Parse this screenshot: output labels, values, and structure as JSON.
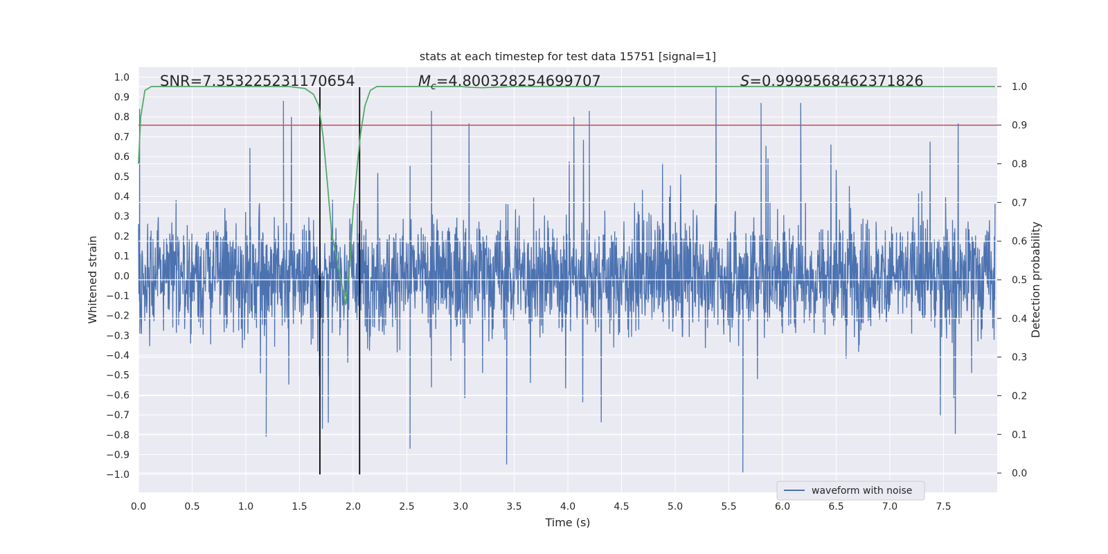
{
  "chart_data": {
    "type": "line",
    "title": "stats at each timestep for test data 15751 [signal=1]",
    "xlabel": "Time (s)",
    "ylabel_left": "Whitened strain",
    "ylabel_right": "Detection probability",
    "xlim": [
      0.0,
      8.0
    ],
    "ylim_left": [
      -1.09,
      1.05
    ],
    "ylim_right": [
      -0.05,
      1.05
    ],
    "x_ticks": [
      "0.0",
      "0.5",
      "1.0",
      "1.5",
      "2.0",
      "2.5",
      "3.0",
      "3.5",
      "4.0",
      "4.5",
      "5.0",
      "5.5",
      "6.0",
      "6.5",
      "7.0",
      "7.5"
    ],
    "x_tick_values": [
      0.0,
      0.5,
      1.0,
      1.5,
      2.0,
      2.5,
      3.0,
      3.5,
      4.0,
      4.5,
      5.0,
      5.5,
      6.0,
      6.5,
      7.0,
      7.5
    ],
    "y_left_ticks": [
      "1.0",
      "0.9",
      "0.8",
      "0.7",
      "0.6",
      "0.5",
      "0.4",
      "0.3",
      "0.2",
      "0.1",
      "0.0",
      "−0.1",
      "−0.2",
      "−0.3",
      "−0.4",
      "−0.5",
      "−0.6",
      "−0.7",
      "−0.8",
      "−0.9",
      "−1.0"
    ],
    "y_left_tick_values": [
      1.0,
      0.9,
      0.8,
      0.7,
      0.6,
      0.5,
      0.4,
      0.3,
      0.2,
      0.1,
      0.0,
      -0.1,
      -0.2,
      -0.3,
      -0.4,
      -0.5,
      -0.6,
      -0.7,
      -0.8,
      -0.9,
      -1.0
    ],
    "y_right_ticks": [
      "1.0",
      "0.9",
      "0.8",
      "0.7",
      "0.6",
      "0.5",
      "0.4",
      "0.3",
      "0.2",
      "0.1",
      "0.0"
    ],
    "y_right_tick_values": [
      1.0,
      0.9,
      0.8,
      0.7,
      0.6,
      0.5,
      0.4,
      0.3,
      0.2,
      0.1,
      0.0
    ],
    "annotations": {
      "snr": "SNR=7.353225231170654",
      "mc_symbol": "M",
      "mc_sub": "c",
      "mc_value": "=4.800328254699707",
      "s_symbol": "S",
      "s_value": "=0.9999568462371826"
    },
    "threshold_line": {
      "axis": "right",
      "value": 0.9,
      "color": "#c44e52"
    },
    "window_lines": {
      "x": [
        1.69,
        2.06
      ],
      "y_range": [
        -1.0,
        0.95
      ],
      "color": "#000000"
    },
    "legend": {
      "label": "waveform with noise",
      "location": "lower-right"
    },
    "series": [
      {
        "name": "waveform with noise",
        "axis": "left",
        "color": "#4c72b0",
        "description": "noisy whitened strain, approx. 4096 samples over 8 s, amplitude mostly within ±0.5 with spikes to ±1.0",
        "notable_points": [
          {
            "x": 0.01,
            "y": 0.84
          },
          {
            "x": 1.35,
            "y": 0.88
          },
          {
            "x": 2.73,
            "y": 0.83
          },
          {
            "x": 4.2,
            "y": 0.83
          },
          {
            "x": 5.38,
            "y": 0.95
          },
          {
            "x": 5.8,
            "y": 0.87
          },
          {
            "x": 6.17,
            "y": 0.87
          },
          {
            "x": 1.19,
            "y": -0.81
          },
          {
            "x": 2.53,
            "y": -0.87
          },
          {
            "x": 3.43,
            "y": -0.95
          },
          {
            "x": 5.63,
            "y": -0.99
          },
          {
            "x": 7.61,
            "y": -0.8
          }
        ]
      },
      {
        "name": "detection probability",
        "axis": "right",
        "color": "#55a868",
        "x": [
          0.0,
          0.02,
          0.06,
          0.12,
          0.2,
          0.5,
          1.0,
          1.4,
          1.55,
          1.63,
          1.68,
          1.72,
          1.76,
          1.8,
          1.85,
          1.93,
          1.97,
          2.0,
          2.04,
          2.07,
          2.11,
          2.16,
          2.22,
          2.3,
          2.5,
          3.0,
          3.1,
          3.2,
          3.3,
          3.5,
          4.0,
          5.0,
          6.0,
          7.0,
          7.98
        ],
        "y": [
          0.8,
          0.92,
          0.99,
          1.0,
          1.0,
          1.0,
          1.0,
          1.0,
          0.995,
          0.98,
          0.95,
          0.87,
          0.75,
          0.62,
          0.55,
          0.435,
          0.55,
          0.68,
          0.8,
          0.88,
          0.95,
          0.99,
          1.0,
          1.0,
          1.0,
          1.0,
          0.998,
          0.997,
          0.998,
          1.0,
          1.0,
          1.0,
          1.0,
          1.0,
          1.0
        ]
      }
    ]
  }
}
